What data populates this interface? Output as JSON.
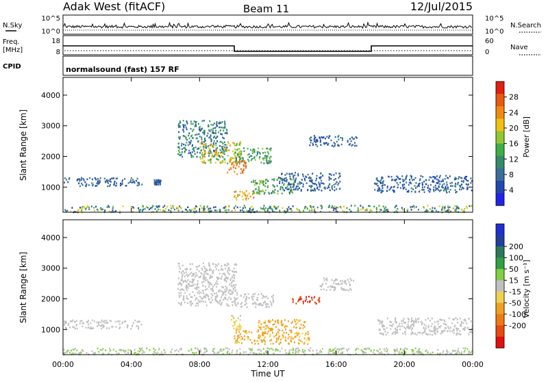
{
  "header": {
    "station": "Adak West (fitACF)",
    "beam": "Beam 11",
    "date": "12/Jul/2015"
  },
  "scan_info": {
    "sky_label": "N.Sky",
    "sky_scale": [
      "10^5",
      "10^0"
    ],
    "search_label": "N.Search",
    "search_scale": [
      "10^5",
      "10^0"
    ],
    "freq_label": "Freq.",
    "freq_unit": "[MHz]",
    "freq_ticks": [
      "18",
      "8"
    ],
    "nave_label": "Nave",
    "nave_ticks": [
      "60",
      "0"
    ],
    "cpid_label": "CPID",
    "cpid_text": "normalsound (fast) 157 RF"
  },
  "colors": {
    "power": [
      "#1f25e8",
      "#2247b0",
      "#3a6e9a",
      "#358a6a",
      "#3fae48",
      "#8fc830",
      "#f0c010",
      "#f08a10",
      "#e85a10",
      "#e02010"
    ],
    "velocity": [
      "#e01010",
      "#e84a10",
      "#f07a10",
      "#f0a020",
      "#f0d050",
      "#c0c0c0",
      "#80d040",
      "#30a040",
      "#2a7a5a",
      "#2040a0",
      "#2030d0"
    ]
  },
  "chart_data": [
    {
      "type": "heatmap",
      "name": "power",
      "xlabel": "",
      "ylabel": "Slant Range [km]",
      "x_ticks": [
        "00:00",
        "04:00",
        "08:00",
        "12:00",
        "16:00",
        "20:00",
        "00:00"
      ],
      "y_ticks": [
        "1000",
        "2000",
        "3000",
        "4000"
      ],
      "xlim_hours": [
        0,
        24
      ],
      "ylim_km": [
        180,
        4580
      ],
      "colorbar": {
        "label": "Power [dB]",
        "ticks": [
          "4",
          "8",
          "12",
          "16",
          "20",
          "24",
          "28"
        ],
        "range": [
          0,
          32
        ]
      },
      "regions": [
        {
          "t": [
            0.0,
            4.6
          ],
          "r": [
            1050,
            1330
          ],
          "v": [
            5,
            10
          ]
        },
        {
          "t": [
            5.3,
            5.7
          ],
          "r": [
            1100,
            1260
          ],
          "v": [
            4,
            9
          ]
        },
        {
          "t": [
            6.7,
            9.6
          ],
          "r": [
            2000,
            3200
          ],
          "v": [
            5,
            14
          ]
        },
        {
          "t": [
            8.0,
            10.4
          ],
          "r": [
            1800,
            2500
          ],
          "v": [
            14,
            24
          ]
        },
        {
          "t": [
            9.6,
            10.7
          ],
          "r": [
            1450,
            1900
          ],
          "v": [
            22,
            29
          ]
        },
        {
          "t": [
            10.0,
            12.2
          ],
          "r": [
            1800,
            2300
          ],
          "v": [
            8,
            17
          ]
        },
        {
          "t": [
            10.0,
            11.2
          ],
          "r": [
            600,
            900
          ],
          "v": [
            18,
            27
          ]
        },
        {
          "t": [
            11.0,
            13.6
          ],
          "r": [
            800,
            1300
          ],
          "v": [
            8,
            20
          ]
        },
        {
          "t": [
            12.6,
            16.2
          ],
          "r": [
            900,
            1500
          ],
          "v": [
            4,
            10
          ]
        },
        {
          "t": [
            14.4,
            17.2
          ],
          "r": [
            2350,
            2700
          ],
          "v": [
            4,
            10
          ]
        },
        {
          "t": [
            18.2,
            24.0
          ],
          "r": [
            850,
            1400
          ],
          "v": [
            4,
            10
          ]
        },
        {
          "t": [
            0.0,
            24.0
          ],
          "r": [
            200,
            420
          ],
          "v": [
            4,
            22
          ]
        }
      ]
    },
    {
      "type": "heatmap",
      "name": "velocity",
      "xlabel": "Time UT",
      "ylabel": "Slant Range [km]",
      "x_ticks": [
        "00:00",
        "04:00",
        "08:00",
        "12:00",
        "16:00",
        "20:00",
        "00:00"
      ],
      "y_ticks": [
        "1000",
        "2000",
        "3000",
        "4000"
      ],
      "xlim_hours": [
        0,
        24
      ],
      "ylim_km": [
        180,
        4580
      ],
      "colorbar": {
        "label": "Velocity [m s⁻¹]",
        "ticks": [
          "-200",
          "-100",
          "-50",
          "-15",
          "15",
          "50",
          "100",
          "200"
        ],
        "range": [
          -250,
          250
        ]
      },
      "regions": [
        {
          "t": [
            0.0,
            4.6
          ],
          "r": [
            1050,
            1330
          ],
          "v": [
            -20,
            20
          ]
        },
        {
          "t": [
            6.7,
            10.2
          ],
          "r": [
            1800,
            3200
          ],
          "v": [
            -14,
            14
          ]
        },
        {
          "t": [
            10.0,
            12.3
          ],
          "r": [
            1750,
            2200
          ],
          "v": [
            -14,
            14
          ]
        },
        {
          "t": [
            9.8,
            10.4
          ],
          "r": [
            1000,
            1500
          ],
          "v": [
            -40,
            -20
          ]
        },
        {
          "t": [
            10.0,
            14.4
          ],
          "r": [
            550,
            1000
          ],
          "v": [
            -110,
            -60
          ]
        },
        {
          "t": [
            11.4,
            14.2
          ],
          "r": [
            1000,
            1350
          ],
          "v": [
            -110,
            -60
          ]
        },
        {
          "t": [
            13.4,
            15.0
          ],
          "r": [
            1850,
            2100
          ],
          "v": [
            -220,
            -160
          ]
        },
        {
          "t": [
            15.0,
            17.0
          ],
          "r": [
            2300,
            2700
          ],
          "v": [
            -14,
            14
          ]
        },
        {
          "t": [
            18.4,
            24.0
          ],
          "r": [
            850,
            1400
          ],
          "v": [
            -20,
            20
          ]
        },
        {
          "t": [
            0.0,
            24.0
          ],
          "r": [
            200,
            420
          ],
          "v": [
            -20,
            60
          ]
        }
      ]
    }
  ]
}
